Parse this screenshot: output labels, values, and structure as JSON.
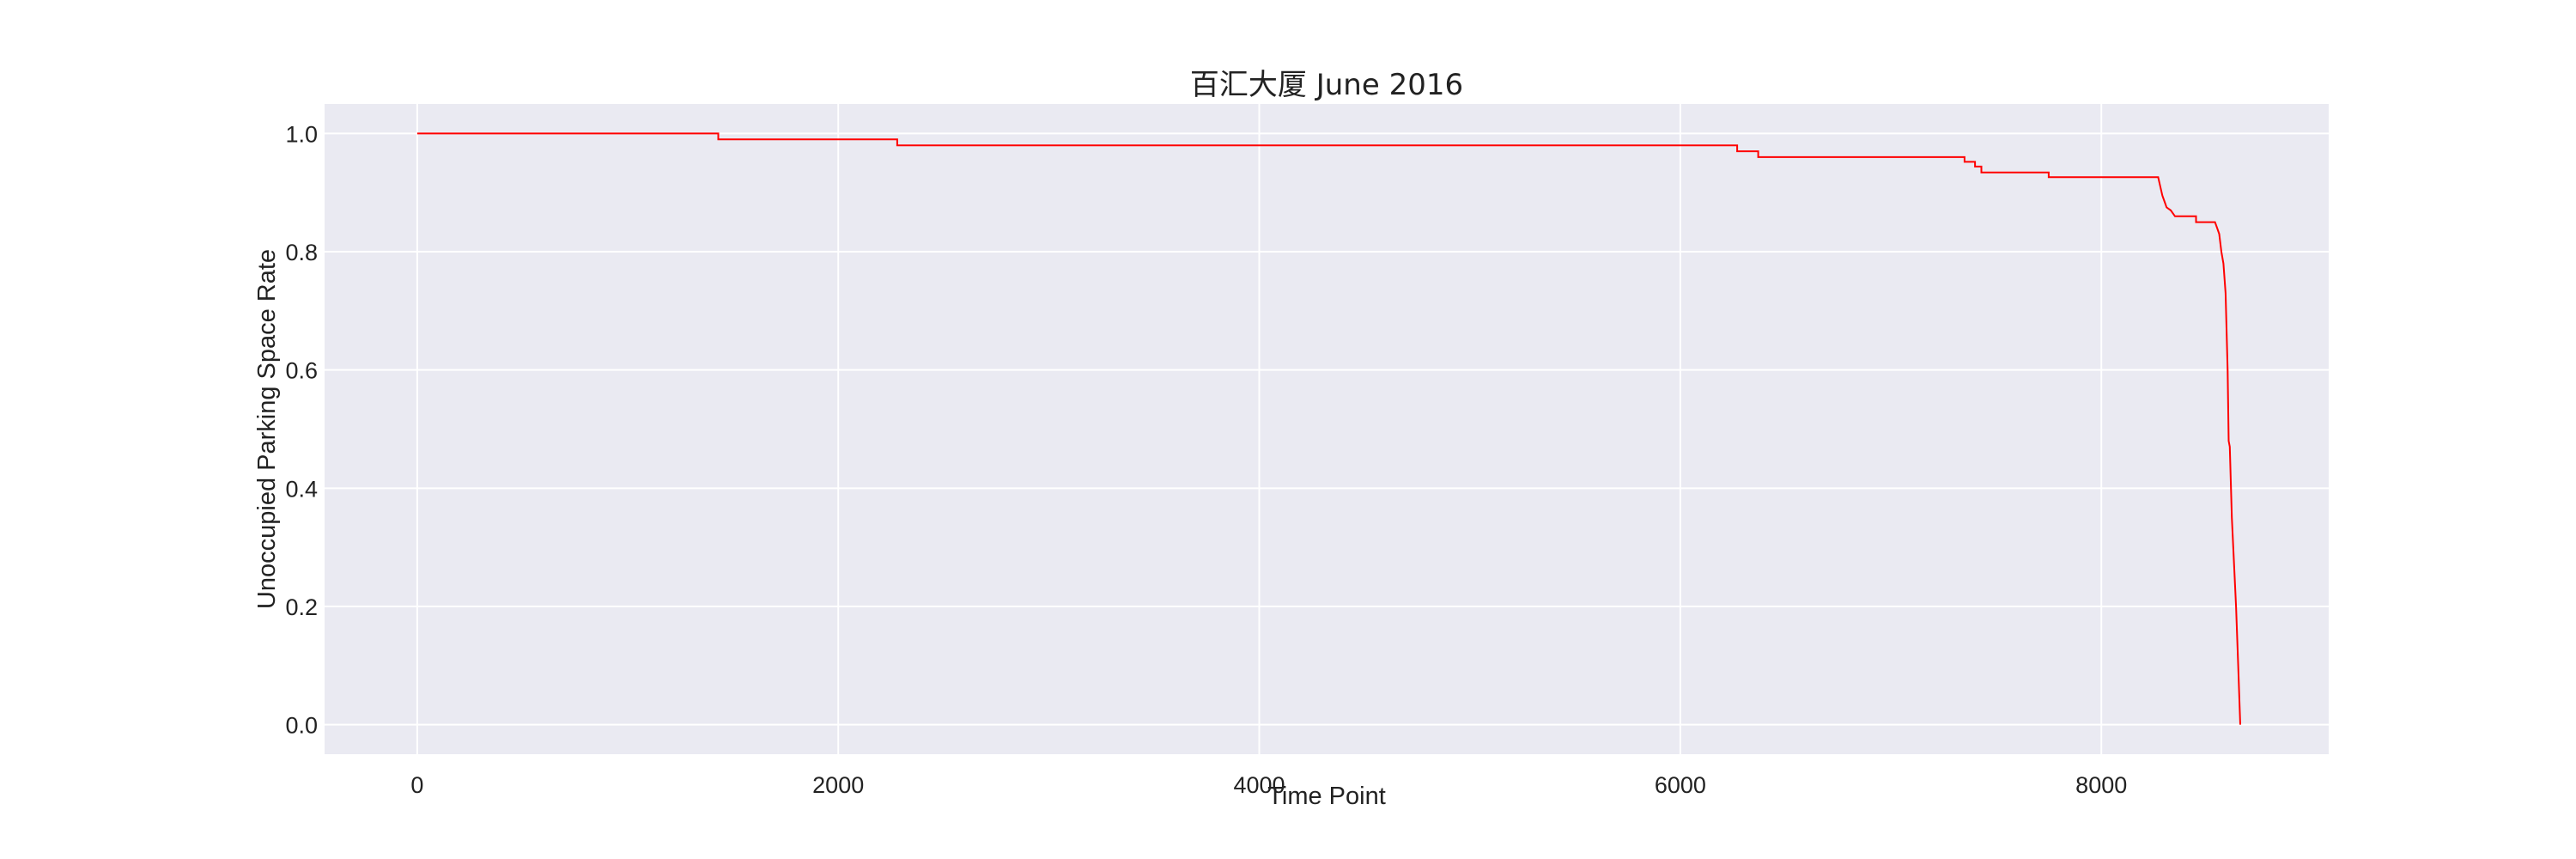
{
  "chart_data": {
    "type": "line",
    "title": "百汇大厦 June 2016",
    "xlabel": "Time Point",
    "ylabel": "Unoccupied Parking Space Rate",
    "xlim": [
      -440,
      9080
    ],
    "ylim": [
      -0.05,
      1.05
    ],
    "xticks": [
      0,
      2000,
      4000,
      6000,
      8000
    ],
    "xtick_labels": [
      "0",
      "2000",
      "4000",
      "6000",
      "8000"
    ],
    "yticks": [
      0.0,
      0.2,
      0.4,
      0.6,
      0.8,
      1.0
    ],
    "ytick_labels": [
      "0.0",
      "0.2",
      "0.4",
      "0.6",
      "0.8",
      "1.0"
    ],
    "grid": true,
    "background": "#eaeaf2",
    "grid_color": "#ffffff",
    "line_color": "#ff0000",
    "series": [
      {
        "x": [
          0,
          1430,
          1430,
          2280,
          2280,
          6270,
          6270,
          6370,
          6370,
          7350,
          7350,
          7400,
          7400,
          7430,
          7430,
          7750,
          7750,
          8270,
          8280,
          8290,
          8300,
          8310,
          8330,
          8350,
          8380,
          8450,
          8450,
          8540,
          8550,
          8560,
          8570,
          8580,
          8590,
          8600,
          8605,
          8610,
          8620,
          8640,
          8650,
          8660
        ],
        "y": [
          1.0,
          1.0,
          0.99,
          0.99,
          0.98,
          0.98,
          0.97,
          0.97,
          0.96,
          0.96,
          0.952,
          0.952,
          0.944,
          0.944,
          0.934,
          0.934,
          0.926,
          0.926,
          0.91,
          0.895,
          0.885,
          0.875,
          0.87,
          0.86,
          0.86,
          0.86,
          0.85,
          0.85,
          0.84,
          0.83,
          0.8,
          0.78,
          0.73,
          0.6,
          0.48,
          0.47,
          0.35,
          0.2,
          0.1,
          0.0
        ]
      }
    ]
  }
}
